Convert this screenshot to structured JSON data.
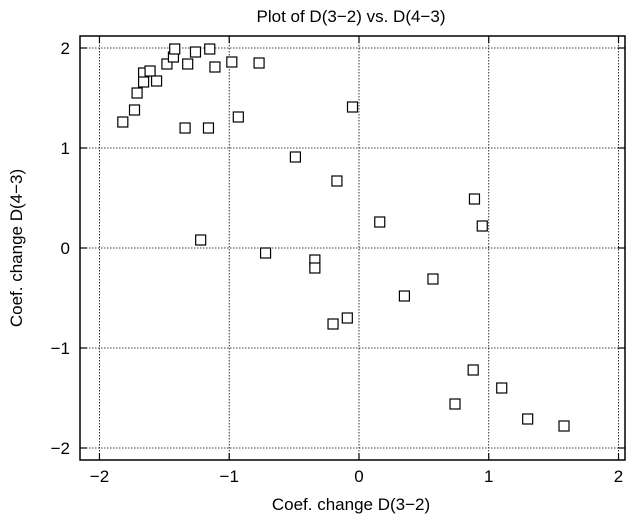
{
  "chart_data": {
    "type": "scatter",
    "title": "Plot of D(3−2) vs. D(4−3)",
    "xlabel": "Coef. change D(3−2)",
    "ylabel": "Coef. change D(4−3)",
    "xlim": [
      -2.15,
      2.05
    ],
    "ylim": [
      -2.12,
      2.12
    ],
    "xticks": [
      -2,
      -1,
      0,
      1,
      2
    ],
    "yticks": [
      -2,
      -1,
      0,
      1,
      2
    ],
    "xtick_labels": [
      "−2",
      "−1",
      "0",
      "1",
      "2"
    ],
    "ytick_labels": [
      "−2",
      "−1",
      "0",
      "1",
      "2"
    ],
    "grid": true,
    "marker": "open-square",
    "colors": {
      "marker": "#000000",
      "axes": "#000000",
      "grid": "#000000"
    },
    "series": [
      {
        "x": [
          -1.82,
          -1.73,
          -1.71,
          -1.66,
          -1.66,
          -1.61,
          -1.56,
          -1.48,
          -1.43,
          -1.42,
          -1.34,
          -1.32,
          -1.26,
          -1.22,
          -1.16,
          -1.15,
          -1.11,
          -0.98,
          -0.93,
          -0.77,
          -0.72,
          -0.49,
          -0.05,
          -0.17,
          -0.34,
          -0.34,
          -0.09,
          -0.2,
          0.16,
          0.35,
          0.57,
          0.89,
          0.95,
          0.88,
          0.74,
          1.1,
          1.3,
          1.58
        ],
        "y": [
          1.26,
          1.38,
          1.55,
          1.75,
          1.66,
          1.77,
          1.67,
          1.84,
          1.91,
          1.99,
          1.2,
          1.84,
          1.96,
          0.08,
          1.2,
          1.99,
          1.81,
          1.86,
          1.31,
          1.85,
          -0.05,
          0.91,
          1.41,
          0.67,
          -0.12,
          -0.2,
          -0.7,
          -0.76,
          0.26,
          -0.48,
          -0.31,
          0.49,
          0.22,
          -1.22,
          -1.56,
          -1.4,
          -1.71,
          -1.78
        ]
      }
    ]
  }
}
